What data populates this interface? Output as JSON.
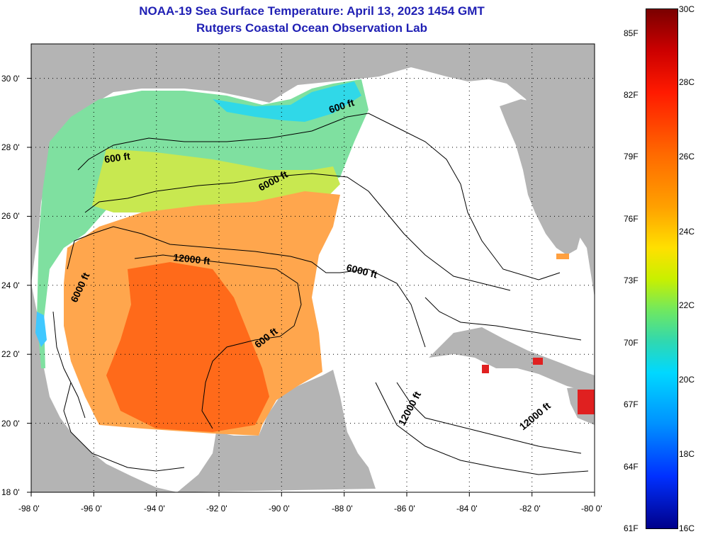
{
  "title": "NOAA-19 Sea Surface Temperature:  April 13, 2023 1454 GMT",
  "subtitle": "Rutgers Coastal Ocean Observation Lab",
  "map": {
    "lon_range": [
      -98,
      -80
    ],
    "lat_range": [
      18,
      31
    ],
    "lon_ticks": [
      "-98 0'",
      "-96 0'",
      "-94 0'",
      "-92 0'",
      "-90 0'",
      "-88 0'",
      "-86 0'",
      "-84 0'",
      "-82 0'",
      "-80 0'"
    ],
    "lat_ticks": [
      "18 0'",
      "20 0'",
      "22 0'",
      "24 0'",
      "26 0'",
      "28 0'",
      "30 0'"
    ],
    "land_color": "#b4b4b4",
    "cloud_color": "#ffffff",
    "contour_labels": [
      "600 ft",
      "600 ft",
      "6000 ft",
      "12000 ft",
      "6000 ft",
      "6000 ft",
      "600 ft",
      "12000 ft",
      "12000 ft"
    ]
  },
  "colorbar": {
    "fahrenheit": [
      "85F",
      "82F",
      "79F",
      "76F",
      "73F",
      "70F",
      "67F",
      "64F",
      "61F"
    ],
    "celsius": [
      "30C",
      "28C",
      "26C",
      "24C",
      "22C",
      "20C",
      "18C",
      "16C"
    ]
  }
}
